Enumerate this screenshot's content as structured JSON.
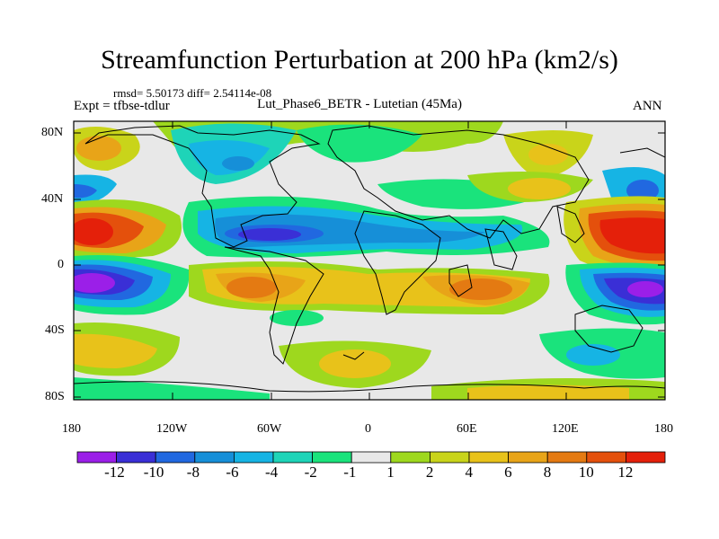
{
  "title": "Streamfunction Perturbation at 200 hPa (km2/s)",
  "stats": "rmsd= 5.50173 diff= 2.54114e-08",
  "expt": "Expt = tfbse-tdlur",
  "model": "Lut_Phase6_BETR - Lutetian (45Ma)",
  "season": "ANN",
  "lat_labels": [
    "80N",
    "40N",
    "0",
    "40S",
    "80S"
  ],
  "lon_labels": [
    "180",
    "120W",
    "60W",
    "0",
    "60E",
    "120E",
    "180"
  ],
  "colorbar": {
    "colors": [
      "#9b1fe8",
      "#3a2fd6",
      "#2168e0",
      "#168fd8",
      "#16b4e4",
      "#1ed4b8",
      "#1ae37c",
      "#e8e8e8",
      "#9ed81e",
      "#c9d41a",
      "#e8c21a",
      "#e8a418",
      "#e47a12",
      "#e4500c",
      "#e4200a"
    ],
    "labels": [
      "-12",
      "-10",
      "-8",
      "-6",
      "-4",
      "-2",
      "-1",
      "1",
      "2",
      "4",
      "6",
      "8",
      "10",
      "12"
    ]
  }
}
